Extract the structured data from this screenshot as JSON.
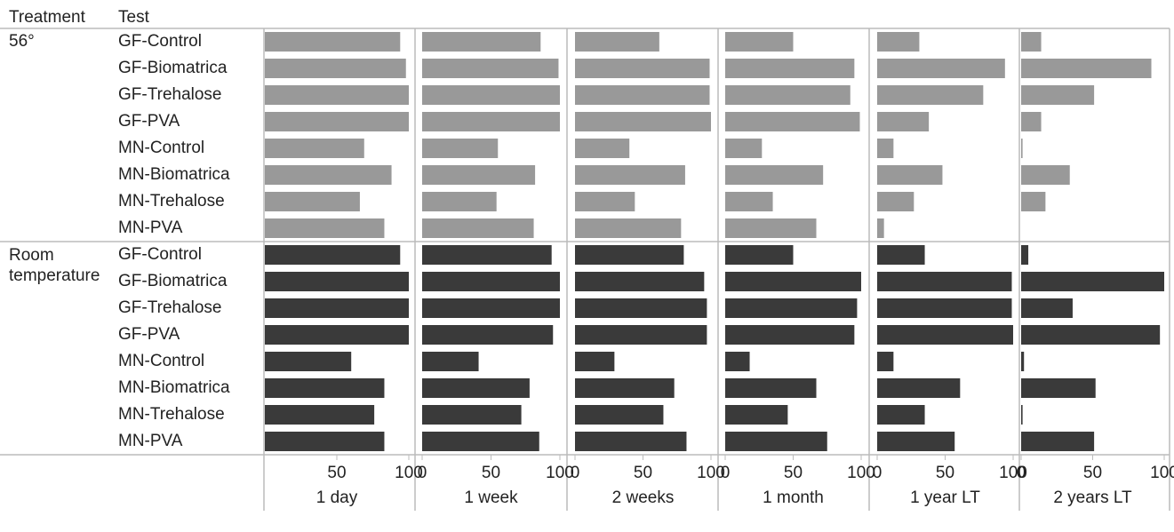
{
  "chart_data": {
    "type": "bar",
    "orientation": "horizontal",
    "column_headers": [
      "Treatment",
      "Test"
    ],
    "treatments": [
      "56°",
      "Room temperature"
    ],
    "colors": [
      "#999999",
      "#3a3a3a"
    ],
    "tests": [
      "GF-Control",
      "GF-Biomatrica",
      "GF-Trehalose",
      "GF-PVA",
      "MN-Control",
      "MN-Biomatrica",
      "MN-Trehalose",
      "MN-PVA"
    ],
    "panels": [
      {
        "title": "1 day",
        "xlim": [
          0,
          100
        ],
        "xticks": [
          50,
          100
        ],
        "values": [
          [
            94,
            98,
            100,
            100,
            69,
            88,
            66,
            83
          ],
          [
            94,
            100,
            100,
            100,
            60,
            83,
            76,
            83
          ]
        ]
      },
      {
        "title": "1 week",
        "xlim": [
          0,
          100
        ],
        "xticks": [
          0,
          50,
          100
        ],
        "values": [
          [
            86,
            99,
            100,
            100,
            55,
            82,
            54,
            81
          ],
          [
            94,
            100,
            100,
            95,
            41,
            78,
            72,
            85
          ]
        ]
      },
      {
        "title": "2 weeks",
        "xlim": [
          0,
          100
        ],
        "xticks": [
          0,
          50,
          100
        ],
        "values": [
          [
            62,
            99,
            99,
            100,
            40,
            81,
            44,
            78
          ],
          [
            80,
            95,
            97,
            97,
            29,
            73,
            65,
            82
          ]
        ]
      },
      {
        "title": "1 month",
        "xlim": [
          0,
          100
        ],
        "xticks": [
          0,
          50,
          100
        ],
        "values": [
          [
            50,
            95,
            92,
            99,
            27,
            72,
            35,
            67
          ],
          [
            50,
            100,
            97,
            95,
            18,
            67,
            46,
            75
          ]
        ]
      },
      {
        "title": "1 year LT",
        "xlim": [
          0,
          100
        ],
        "xticks": [
          0,
          50,
          100
        ],
        "values": [
          [
            31,
            94,
            78,
            38,
            12,
            48,
            27,
            5
          ],
          [
            35,
            99,
            99,
            100,
            12,
            61,
            35,
            57
          ]
        ]
      },
      {
        "title": "2 years LT",
        "xlim": [
          0,
          100
        ],
        "xticks": [
          0,
          50,
          100
        ],
        "values": [
          [
            14,
            91,
            51,
            14,
            1,
            34,
            17,
            0
          ],
          [
            5,
            100,
            36,
            97,
            2,
            52,
            1,
            51
          ]
        ]
      }
    ]
  }
}
